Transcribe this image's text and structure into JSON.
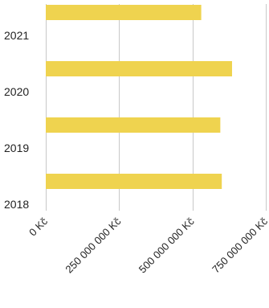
{
  "chart_data": {
    "type": "bar",
    "orientation": "horizontal",
    "categories": [
      "2021",
      "2020",
      "2019",
      "2018"
    ],
    "values": [
      530000000,
      635000000,
      595000000,
      600000000
    ],
    "xlim": [
      0,
      750000000
    ],
    "xticks": [
      {
        "value": 0,
        "label": "0 Kč"
      },
      {
        "value": 250000000,
        "label": "250 000 000 Kč"
      },
      {
        "value": 500000000,
        "label": "500 000 000 Kč"
      },
      {
        "value": 750000000,
        "label": "750 000 000 Kč"
      }
    ],
    "grid": true,
    "bar_color": "#efd34f",
    "grid_color": "#c8c8c8"
  }
}
